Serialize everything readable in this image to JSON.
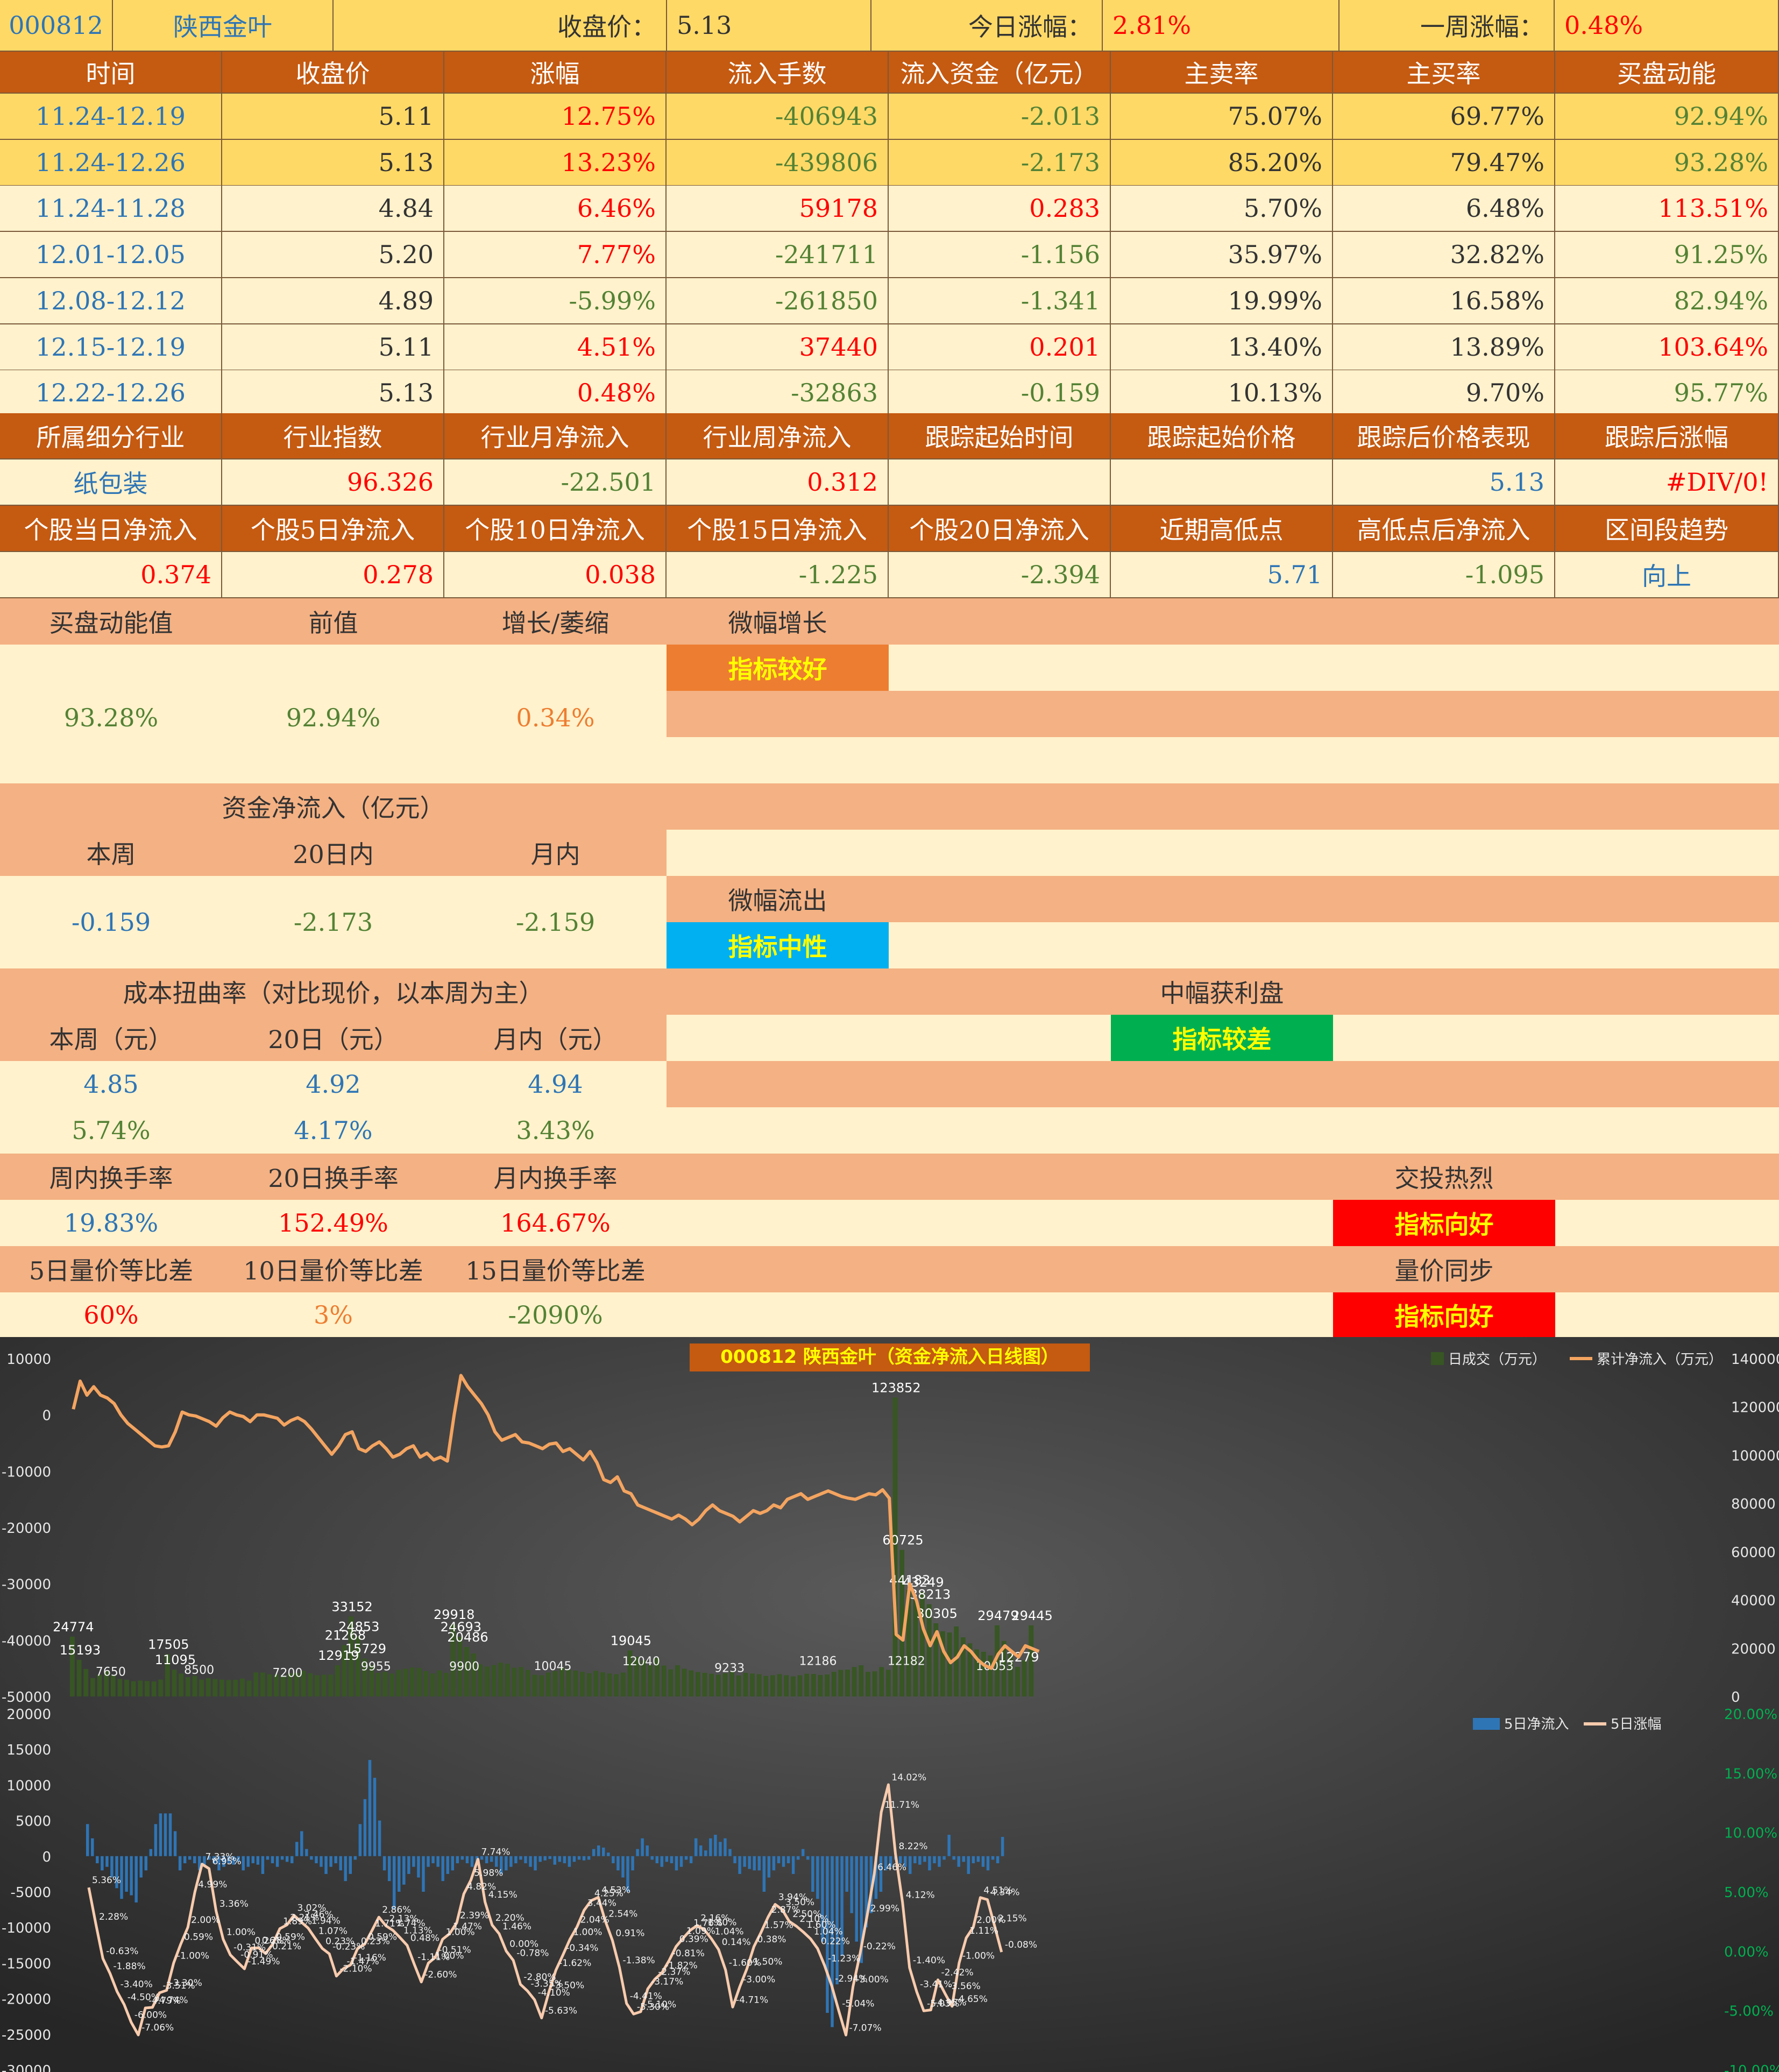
{
  "header": {
    "code": "000812",
    "name": "陕西金叶",
    "close_label": "收盘价：",
    "close": "5.13",
    "today_label": "今日涨幅：",
    "today": "2.81%",
    "week_label": "一周涨幅：",
    "week": "0.48%"
  },
  "period_table": {
    "headers": [
      "时间",
      "收盘价",
      "涨幅",
      "流入手数",
      "流入资金（亿元）",
      "主卖率",
      "主买率",
      "买盘动能"
    ],
    "rows": [
      [
        "11.24-12.19",
        "5.11",
        "12.75%",
        "-406943",
        "-2.013",
        "75.07%",
        "69.77%",
        "92.94%"
      ],
      [
        "11.24-12.26",
        "5.13",
        "13.23%",
        "-439806",
        "-2.173",
        "85.20%",
        "79.47%",
        "93.28%"
      ],
      [
        "11.24-11.28",
        "4.84",
        "6.46%",
        "59178",
        "0.283",
        "5.70%",
        "6.48%",
        "113.51%"
      ],
      [
        "12.01-12.05",
        "5.20",
        "7.77%",
        "-241711",
        "-1.156",
        "35.97%",
        "32.82%",
        "91.25%"
      ],
      [
        "12.08-12.12",
        "4.89",
        "-5.99%",
        "-261850",
        "-1.341",
        "19.99%",
        "16.58%",
        "82.94%"
      ],
      [
        "12.15-12.19",
        "5.11",
        "4.51%",
        "37440",
        "0.201",
        "13.40%",
        "13.89%",
        "103.64%"
      ],
      [
        "12.22-12.26",
        "5.13",
        "0.48%",
        "-32863",
        "-0.159",
        "10.13%",
        "9.70%",
        "95.77%"
      ]
    ]
  },
  "industry": {
    "headers": [
      "所属细分行业",
      "行业指数",
      "行业月净流入",
      "行业周净流入",
      "跟踪起始时间",
      "跟踪起始价格",
      "跟踪后价格表现",
      "跟踪后涨幅"
    ],
    "values": [
      "纸包装",
      "96.326",
      "-22.501",
      "0.312",
      "",
      "",
      "5.13",
      "#DIV/0!"
    ]
  },
  "stock_flow": {
    "headers": [
      "个股当日净流入",
      "个股5日净流入",
      "个股10日净流入",
      "个股15日净流入",
      "个股20日净流入",
      "近期高低点",
      "高低点后净流入",
      "区间段趋势"
    ],
    "values": [
      "0.374",
      "0.278",
      "0.038",
      "-1.225",
      "-2.394",
      "5.71",
      "-1.095",
      "向上"
    ]
  },
  "momentum": {
    "labels": [
      "买盘动能值",
      "前值",
      "增长/萎缩"
    ],
    "values": [
      "93.28%",
      "92.94%",
      "0.34%"
    ],
    "status": "微幅增长",
    "badge": "指标较好"
  },
  "netflow": {
    "title": "资金净流入（亿元）",
    "labels": [
      "本周",
      "20日内",
      "月内"
    ],
    "values": [
      "-0.159",
      "-2.173",
      "-2.159"
    ],
    "status": "微幅流出",
    "badge": "指标中性"
  },
  "cost": {
    "title": "成本扭曲率（对比现价，以本周为主）",
    "labels": [
      "本周（元）",
      "20日（元）",
      "月内（元）"
    ],
    "values": [
      "4.85",
      "4.92",
      "4.94"
    ],
    "pcts": [
      "5.74%",
      "4.17%",
      "3.43%"
    ],
    "status": "中幅获利盘",
    "badge": "指标较差"
  },
  "turnover": {
    "labels": [
      "周内换手率",
      "20日换手率",
      "月内换手率"
    ],
    "values": [
      "19.83%",
      "152.49%",
      "164.67%"
    ],
    "status": "交投热烈",
    "badge": "指标向好"
  },
  "volprice": {
    "labels": [
      "5日量价等比差",
      "10日量价等比差",
      "15日量价等比差"
    ],
    "values": [
      "60%",
      "3%",
      "-2090%"
    ],
    "status": "量价同步",
    "badge": "指标向好"
  },
  "colors": {
    "header": "#C55A11",
    "light": "#F4B183",
    "cream": "#FFF2CC",
    "gold": "#FFD966",
    "orange_badge": "#ED7D31",
    "blue_badge": "#00B0F0",
    "green_badge": "#00B050",
    "red_badge": "#FF0000"
  },
  "chart_data": [
    {
      "type": "bar",
      "title": "000812 陕西金叶（资金净流入日线图）",
      "legend_position": "top-right",
      "grid": false,
      "series": [
        {
          "name": "日成交（万元）",
          "axis": "right",
          "values": [
            24774,
            15193,
            11395,
            7650,
            9000,
            10500,
            8800,
            7300,
            6900,
            6300,
            6600,
            6400,
            6200,
            7000,
            17505,
            11095,
            9500,
            8000,
            8500,
            7000,
            7600,
            7200,
            7000,
            6800,
            6900,
            7400,
            6600,
            9958,
            9900,
            9200,
            9100,
            8600,
            9600,
            9800,
            10600,
            9600,
            8800,
            9000,
            9025,
            12919,
            21268,
            33152,
            24853,
            15729,
            13000,
            9800,
            10200,
            9500,
            11000,
            11500,
            12000,
            11800,
            10500,
            9500,
            10800,
            9800,
            29918,
            24693,
            20486,
            17800,
            13300,
            12400,
            13000,
            14000,
            13500,
            11900,
            12200,
            11000,
            9000,
            8800,
            9900,
            10500,
            12040,
            11100,
            10700,
            10200,
            9600,
            10600,
            10000,
            9500,
            9200,
            9900,
            19045,
            16500,
            15000,
            13000,
            16000,
            12800,
            11200,
            12906,
            11500,
            10800,
            10100,
            9800,
            9400,
            9000,
            9600,
            10300,
            8700,
            9800,
            9500,
            9200,
            8500,
            8800,
            9233,
            8800,
            8300,
            8800,
            9400,
            9300,
            8900,
            9100,
            10200,
            11000,
            11100,
            12186,
            12900,
            10200,
            10400,
            12182,
            11053,
            123852,
            60725,
            44183,
            40000,
            43249,
            38213,
            30305,
            27000,
            26500,
            29000,
            24500,
            22000,
            19500,
            18500,
            17000,
            29479,
            23000,
            17500,
            12279,
            15000,
            29445
          ],
          "labels_shown": [
            24774,
            15193,
            17505,
            11095,
            33152,
            24853,
            21268,
            15729,
            12919,
            29918,
            24693,
            20486,
            19045,
            123852,
            60725,
            44183,
            43249,
            38213,
            30305,
            29479,
            29445,
            12279
          ]
        },
        {
          "name": "累计净流入（万元）",
          "axis": "left",
          "values": [
            1000,
            6000,
            3500,
            5000,
            3500,
            3000,
            2000,
            0,
            -1500,
            -2500,
            -3500,
            -4500,
            -5500,
            -5700,
            -5500,
            -3000,
            500,
            0,
            -200,
            -700,
            -1200,
            -2000,
            -500,
            500,
            0,
            -300,
            -1200,
            0,
            0,
            -300,
            -600,
            -1800,
            -1000,
            -500,
            -1200,
            -2500,
            -4000,
            -5500,
            -7000,
            -5500,
            -3500,
            -3000,
            -6000,
            -6500,
            -5500,
            -4800,
            -6000,
            -7500,
            -7000,
            -6000,
            -5500,
            -7500,
            -6800,
            -8000,
            -7500,
            -8200,
            0,
            7000,
            5000,
            3500,
            2000,
            0,
            -3000,
            -4500,
            -4000,
            -3500,
            -4800,
            -5000,
            -5500,
            -6000,
            -5200,
            -5000,
            -6500,
            -6000,
            -7000,
            -8000,
            -6500,
            -8500,
            -11500,
            -12000,
            -11000,
            -13500,
            -14000,
            -16000,
            -16500,
            -17000,
            -17500,
            -18000,
            -18500,
            -17800,
            -18500,
            -19500,
            -18500,
            -17000,
            -16000,
            -17000,
            -17500,
            -18000,
            -19000,
            -18000,
            -17000,
            -17500,
            -17000,
            -16000,
            -16500,
            -15000,
            -14500,
            -14000,
            -15000,
            -14500,
            -14000,
            -13500,
            -14000,
            -14500,
            -14800,
            -15000,
            -14500,
            -14000,
            -14200,
            -13300,
            -14800,
            -39000,
            -40000,
            -30000,
            -33000,
            -38000,
            -41000,
            -38500,
            -42000,
            -44000,
            -43000,
            -41000,
            -42000,
            -43500,
            -44500,
            -45000,
            -42500,
            -41000,
            -42000,
            -43000,
            -41000,
            -41500,
            -42000
          ],
          "labels_shown": []
        }
      ],
      "y_left": {
        "min": -50000,
        "max": 10000,
        "ticks": [
          10000,
          0,
          -10000,
          -20000,
          -30000,
          -40000,
          -50000
        ]
      },
      "y_right": {
        "min": 0,
        "max": 140000,
        "ticks": [
          140000,
          120000,
          100000,
          80000,
          60000,
          40000,
          20000,
          0
        ]
      },
      "extra_labels": [
        7650,
        8500,
        7200,
        9955,
        9900,
        10045,
        12040,
        9233,
        12186,
        12182,
        10053
      ]
    },
    {
      "type": "bar",
      "legend_position": "top-right",
      "grid": false,
      "series": [
        {
          "name": "5日净流入",
          "axis": "left",
          "values": [
            4500,
            2500,
            -1000,
            -2000,
            -1500,
            -3000,
            -4500,
            -6000,
            -5000,
            -5500,
            -6500,
            -3000,
            -2000,
            1000,
            4500,
            6000,
            6000,
            6000,
            3500,
            -2000,
            -1000,
            -500,
            -1000,
            -2000,
            -1500,
            -500,
            -1000,
            -2000,
            -1500,
            -1000,
            -1200,
            -800,
            -2000,
            -1500,
            -1000,
            -1200,
            -2500,
            -500,
            -1000,
            -1500,
            -500,
            -800,
            -1000,
            2000,
            3500,
            1000,
            -500,
            -1000,
            -1500,
            -2500,
            -1500,
            -1000,
            -2000,
            -3500,
            -2500,
            -500,
            4500,
            8000,
            13500,
            11000,
            5000,
            -2000,
            -3500,
            -7500,
            -5000,
            -4000,
            -2500,
            -1500,
            -3000,
            -5000,
            -1500,
            -1000,
            -1500,
            -3500,
            -2500,
            -2000,
            -1000,
            -500,
            -1000,
            -1500,
            -1000,
            -500,
            -1000,
            -800,
            -1500,
            -2500,
            -2000,
            -1500,
            -1000,
            -500,
            -1000,
            -1500,
            -2000,
            -800,
            -600,
            -400,
            -1200,
            -800,
            -1000,
            -1500,
            -800,
            -500,
            -600,
            -500,
            1000,
            1500,
            1200,
            500,
            -1000,
            -2000,
            -3000,
            -5000,
            -2000,
            1000,
            2500,
            1500,
            -500,
            -1000,
            -1500,
            -800,
            -1000,
            -2000,
            -1500,
            -500,
            -1000,
            2500,
            1500,
            800,
            2500,
            3000,
            2000,
            2500,
            1000,
            -1000,
            -2500,
            -1500,
            -1800,
            -2000,
            -2000,
            -5000,
            -3000,
            -2000,
            -1000,
            -1500,
            -1000,
            -2500,
            -500,
            1000,
            -500,
            -5000,
            -6000,
            -12000,
            -22000,
            -24000,
            -18000,
            -14000,
            -5000,
            -8000,
            -12000,
            -15000,
            -10000,
            -8000,
            -6000,
            -5000,
            -2000,
            -1500,
            -500,
            -1000,
            -1500,
            -2500,
            -1000,
            -1200,
            -800,
            -2000,
            -1000,
            -1500,
            -500,
            3000,
            -500,
            -1500,
            -800,
            -2500,
            -1000,
            -800,
            -1500,
            -2000,
            -500,
            -1000,
            2700
          ],
          "labels_shown": []
        },
        {
          "name": "5日涨幅",
          "axis": "right",
          "unit": "%",
          "values": [
            5.36,
            2.28,
            -0.63,
            -1.88,
            -3.4,
            -4.5,
            -6.0,
            -7.06,
            -4.79,
            -4.74,
            -3.51,
            -3.3,
            -1.0,
            0.59,
            2.0,
            4.99,
            7.33,
            6.95,
            3.36,
            1.0,
            -0.31,
            -0.91,
            -1.49,
            0.26,
            0.28,
            -0.21,
            0.59,
            1.89,
            2.21,
            3.02,
            2.46,
            1.94,
            1.07,
            0.23,
            -0.23,
            -2.1,
            -1.47,
            -1.16,
            0.23,
            0.59,
            1.71,
            2.86,
            2.13,
            1.74,
            1.13,
            0.48,
            -1.11,
            -2.6,
            -1.0,
            -0.51,
            1.0,
            1.47,
            2.39,
            4.82,
            5.98,
            7.74,
            4.15,
            2.2,
            1.46,
            0.0,
            -0.78,
            -2.8,
            -3.35,
            -4.1,
            -5.63,
            -3.5,
            -1.62,
            -0.34,
            1.0,
            2.04,
            3.44,
            4.25,
            4.53,
            2.54,
            0.91,
            -1.38,
            -4.41,
            -5.3,
            -5.1,
            -3.17,
            -2.37,
            -1.82,
            -0.81,
            0.39,
            1.09,
            1.76,
            2.16,
            1.8,
            1.04,
            0.14,
            -1.6,
            -4.71,
            -3.0,
            -1.5,
            0.38,
            1.57,
            2.87,
            3.94,
            3.5,
            2.5,
            2.1,
            1.6,
            1.04,
            0.22,
            -1.23,
            -2.94,
            -5.04,
            -7.07,
            -3.0,
            -0.22,
            2.99,
            6.46,
            11.71,
            14.02,
            8.22,
            4.12,
            -1.4,
            -3.41,
            -5.03,
            -4.95,
            -2.42,
            -3.56,
            -4.65,
            -1.0,
            1.11,
            2.0,
            4.51,
            4.34,
            2.15,
            -0.08
          ],
          "labels_shown": []
        }
      ],
      "y_left": {
        "min": -30000,
        "max": 20000,
        "ticks": [
          20000,
          15000,
          10000,
          5000,
          0,
          -5000,
          -10000,
          -15000,
          -20000,
          -25000,
          -30000
        ]
      },
      "y_right": {
        "min": -10,
        "max": 20,
        "ticks": [
          "20.00%",
          "15.00%",
          "10.00%",
          "5.00%",
          "0.00%",
          "-5.00%",
          "-10.00%"
        ]
      }
    }
  ]
}
